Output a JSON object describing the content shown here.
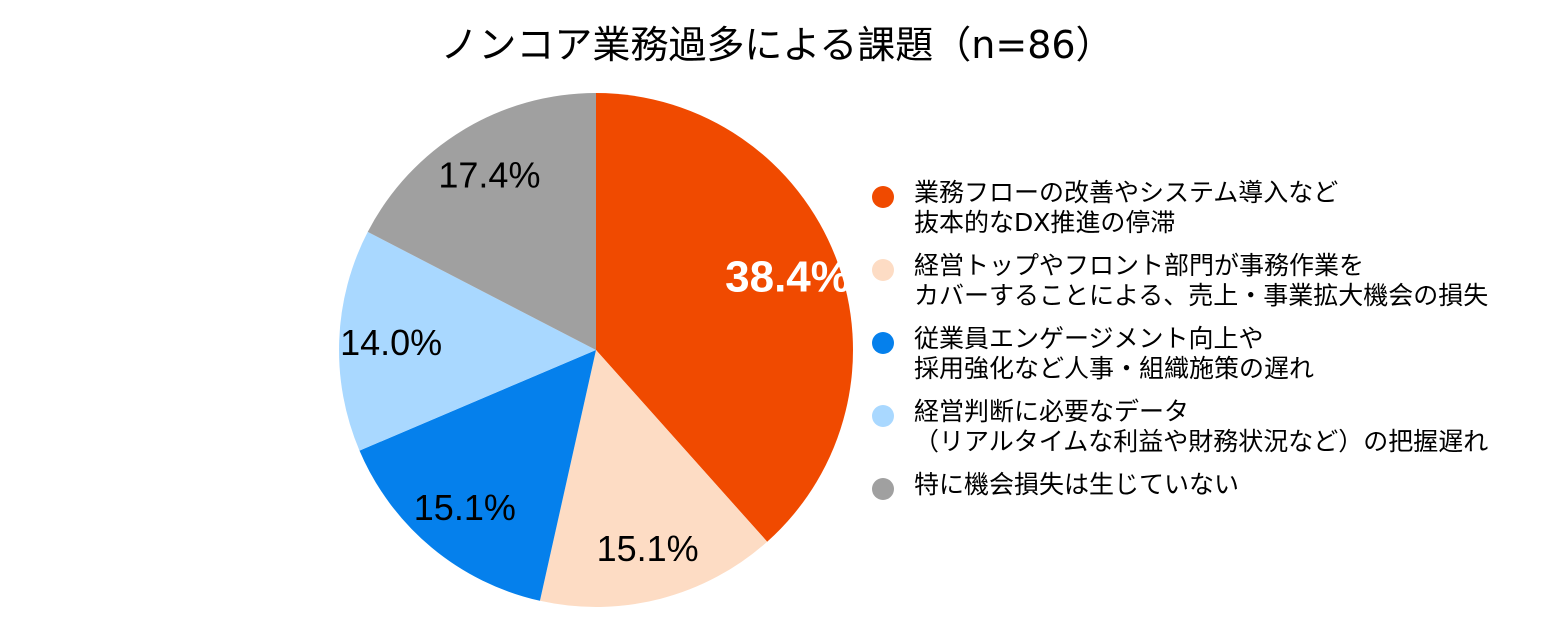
{
  "chart_data": {
    "type": "pie",
    "title": "ノンコア業務過多による課題（n=86）",
    "slices": [
      {
        "label": "業務フローの改善やシステム導入など\n抜本的なDX推進の停滞",
        "value": 38.4,
        "value_label": "38.4%",
        "color": "#F04A00",
        "label_color": "#ffffff",
        "label_bold": true
      },
      {
        "label": "経営トップやフロント部門が事務作業を\nカバーすることによる、売上・事業拡大機会の損失",
        "value": 15.1,
        "value_label": "15.1%",
        "color": "#FDDCC4",
        "label_color": "#000000",
        "label_bold": false
      },
      {
        "label": "従業員エンゲージメント向上や\n採用強化など人事・組織施策の遅れ",
        "value": 15.1,
        "value_label": "15.1%",
        "color": "#0580EC",
        "label_color": "#000000",
        "label_bold": false
      },
      {
        "label": "経営判断に必要なデータ\n（リアルタイムな利益や財務状況など）の把握遅れ",
        "value": 14.0,
        "value_label": "14.0%",
        "color": "#A9D8FF",
        "label_color": "#000000",
        "label_bold": false
      },
      {
        "label": "特に機会損失は生じていない",
        "value": 17.4,
        "value_label": "17.4%",
        "color": "#A0A0A0",
        "label_color": "#000000",
        "label_bold": false
      }
    ],
    "start": "top",
    "direction": "clockwise",
    "legend_position": "right"
  }
}
